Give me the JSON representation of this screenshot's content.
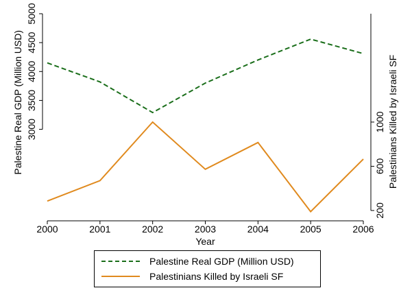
{
  "chart_data": {
    "type": "line",
    "xlabel": "Year",
    "x": [
      2000,
      2001,
      2002,
      2003,
      2004,
      2005,
      2006
    ],
    "left_axis": {
      "label": "Palestine Real GDP (Million USD)",
      "ticks": [
        3000,
        3500,
        4000,
        4500,
        5000
      ],
      "ylim": [
        1500,
        5000
      ]
    },
    "right_axis": {
      "label": "Palestinians Killed by Israeli SF",
      "ticks": [
        200,
        600,
        1000
      ],
      "ylim": [
        150,
        1980
      ]
    },
    "series": [
      {
        "name": "Palestine Real GDP (Million USD)",
        "axis": "left",
        "style": "dashed",
        "color": "#1a6e1a",
        "values": [
          4150,
          3820,
          3290,
          3800,
          4200,
          4560,
          4310
        ]
      },
      {
        "name": "Palestinians Killed by Israeli SF",
        "axis": "right",
        "style": "solid",
        "color": "#e08a1e",
        "values": [
          285,
          470,
          1000,
          573,
          815,
          190,
          665
        ]
      }
    ],
    "grid": false,
    "legend_position": "bottom"
  }
}
